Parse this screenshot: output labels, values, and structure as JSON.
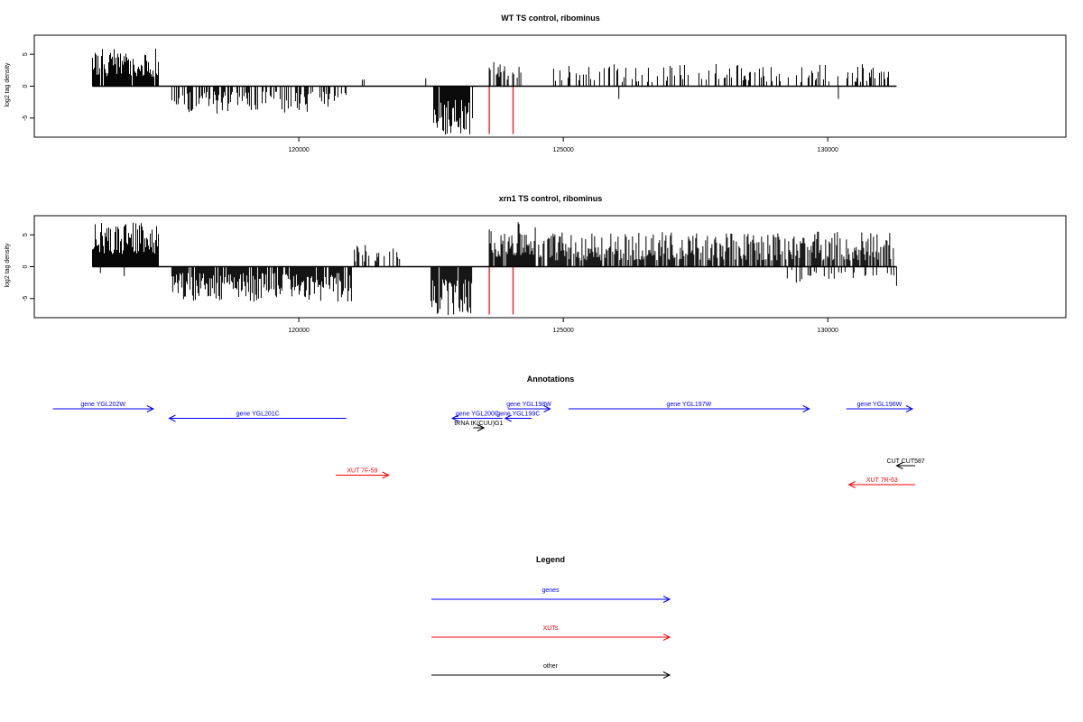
{
  "chart_data": [
    {
      "type": "bar",
      "title": "WT TS control, ribominus",
      "ylabel": "log2 tag density",
      "xlim": [
        115000,
        134500
      ],
      "ylim": [
        -8,
        8
      ],
      "x_ticks": [
        120000,
        125000,
        130000
      ],
      "y_ticks": [
        -5,
        0,
        5
      ],
      "marker_lines_x": [
        123600,
        124050
      ],
      "marker_line_color": "#ff0000",
      "bar_color": "#000000",
      "segments": [
        {
          "from": 116100,
          "to": 117350,
          "dir": 1,
          "min": 1.5,
          "max": 6.0,
          "density": 0.95
        },
        {
          "from": 117600,
          "to": 120900,
          "dir": -1,
          "min": 0.8,
          "max": 4.5,
          "density": 0.55
        },
        {
          "from": 121200,
          "to": 121250,
          "dir": 1,
          "min": 1.0,
          "max": 1.2,
          "density": 0.3
        },
        {
          "from": 122400,
          "to": 122450,
          "dir": 1,
          "min": 1.0,
          "max": 1.5,
          "density": 0.3
        },
        {
          "from": 122550,
          "to": 123300,
          "dir": -1,
          "min": 2.0,
          "max": 7.8,
          "density": 0.95
        },
        {
          "from": 123600,
          "to": 124200,
          "dir": 1,
          "min": 1.0,
          "max": 3.8,
          "density": 0.5
        },
        {
          "from": 124800,
          "to": 131300,
          "dir": 1,
          "min": 0.6,
          "max": 3.5,
          "density": 0.3
        }
      ],
      "extra_bars": [
        {
          "x": 126050,
          "y": -2.0
        },
        {
          "x": 130200,
          "y": -2.0
        }
      ]
    },
    {
      "type": "bar",
      "title": "xrn1 TS control, ribominus",
      "ylabel": "log2 tag density",
      "xlim": [
        115000,
        134500
      ],
      "ylim": [
        -8,
        8
      ],
      "x_ticks": [
        120000,
        125000,
        130000
      ],
      "y_ticks": [
        -5,
        0,
        5
      ],
      "marker_lines_x": [
        123600,
        124050
      ],
      "marker_line_color": "#ff0000",
      "bar_color": "#000000",
      "segments": [
        {
          "from": 116100,
          "to": 117350,
          "dir": 1,
          "min": 2.0,
          "max": 7.0,
          "density": 1.0
        },
        {
          "from": 117600,
          "to": 121000,
          "dir": -1,
          "min": 1.0,
          "max": 5.5,
          "density": 0.85
        },
        {
          "from": 121000,
          "to": 121950,
          "dir": 1,
          "min": 0.8,
          "max": 3.5,
          "density": 0.4
        },
        {
          "from": 122500,
          "to": 123300,
          "dir": -1,
          "min": 2.0,
          "max": 7.8,
          "density": 0.95
        },
        {
          "from": 123600,
          "to": 124500,
          "dir": 1,
          "min": 1.5,
          "max": 7.0,
          "density": 0.95
        },
        {
          "from": 124500,
          "to": 131300,
          "dir": 1,
          "min": 1.0,
          "max": 5.5,
          "density": 0.75
        },
        {
          "from": 129200,
          "to": 131300,
          "dir": -1,
          "min": 0.5,
          "max": 2.5,
          "density": 0.2
        }
      ],
      "extra_bars": [
        {
          "x": 116250,
          "y": -1.0
        },
        {
          "x": 116700,
          "y": -1.5
        },
        {
          "x": 131300,
          "y": -3.0
        }
      ]
    }
  ],
  "annotations": {
    "title": "Annotations",
    "xlim": [
      115000,
      134500
    ],
    "items": [
      {
        "label": "gene YGL202W",
        "start": 115350,
        "end": 117250,
        "dir": 1,
        "row": 0,
        "color": "#0000ff"
      },
      {
        "label": "gene YGL201C",
        "start": 117550,
        "end": 120900,
        "dir": -1,
        "row": 1,
        "color": "#0000ff"
      },
      {
        "label": "tRNA tK(CUU)G1",
        "start": 123300,
        "end": 123500,
        "dir": 1,
        "row": 2,
        "color": "#000000"
      },
      {
        "label": "gene YGL200C",
        "start": 122900,
        "end": 123850,
        "dir": -1,
        "row": 1,
        "color": "#0000ff"
      },
      {
        "label": "gene YGL198W",
        "start": 123950,
        "end": 124750,
        "dir": 1,
        "row": 0,
        "color": "#0000ff"
      },
      {
        "label": "gene YGL199C",
        "start": 123900,
        "end": 124400,
        "dir": -1,
        "row": 1,
        "color": "#0000ff"
      },
      {
        "label": "gene YGL197W",
        "start": 125100,
        "end": 129650,
        "dir": 1,
        "row": 0,
        "color": "#0000ff"
      },
      {
        "label": "gene YGL196W",
        "start": 130350,
        "end": 131600,
        "dir": 1,
        "row": 0,
        "color": "#0000ff"
      },
      {
        "label": "XUT 7F-59",
        "start": 120700,
        "end": 121700,
        "dir": 1,
        "row": 7,
        "color": "#ff0000"
      },
      {
        "label": "CUT CUT587",
        "start": 131300,
        "end": 131650,
        "dir": -1,
        "row": 6,
        "color": "#000000"
      },
      {
        "label": "XUT 7R-63",
        "start": 130400,
        "end": 131650,
        "dir": -1,
        "row": 8,
        "color": "#ff0000"
      }
    ]
  },
  "legend": {
    "title": "Legend",
    "items": [
      {
        "label": "genes",
        "color": "#0000ff"
      },
      {
        "label": "XUTs",
        "color": "#ff0000"
      },
      {
        "label": "other",
        "color": "#000000"
      }
    ]
  }
}
